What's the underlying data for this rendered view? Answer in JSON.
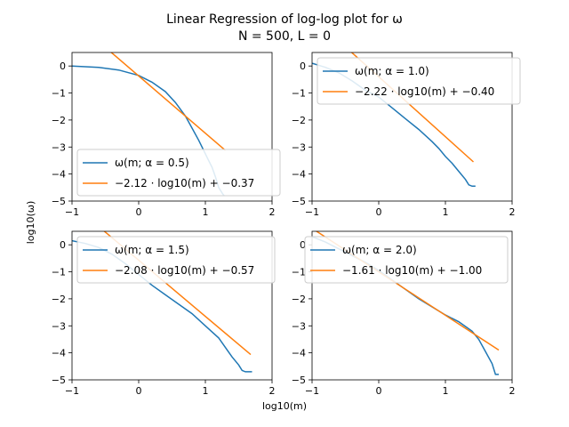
{
  "figure": {
    "title_line1": "Linear Regression of log-log plot for ω",
    "title_line2": "N = 500, L = 0",
    "xlabel": "log10(m)",
    "ylabel": "log10(ω)"
  },
  "colors": {
    "data": "#1f77b4",
    "fit": "#ff7f0e",
    "axis": "#000000"
  },
  "chart_data": [
    {
      "type": "line",
      "panel": "top-left",
      "xlim": [
        -1,
        2
      ],
      "ylim": [
        -5,
        0.5
      ],
      "xticks": [
        -1,
        0,
        1,
        2
      ],
      "yticks": [
        0,
        -1,
        -2,
        -3,
        -4,
        -5
      ],
      "legend": {
        "placement": "lower left",
        "entries": [
          "ω(m; α = 0.5)",
          "−2.12 · log10(m) + −0.37"
        ]
      },
      "series": [
        {
          "name": "ω(m; α = 0.5)",
          "role": "data",
          "x": [
            -1,
            -0.6,
            -0.3,
            0,
            0.2,
            0.4,
            0.55,
            0.7,
            0.8,
            0.9,
            1.0,
            1.05,
            1.1,
            1.15,
            1.2,
            1.25,
            1.28
          ],
          "y": [
            0.0,
            -0.05,
            -0.15,
            -0.35,
            -0.6,
            -0.95,
            -1.35,
            -1.85,
            -2.3,
            -2.75,
            -3.25,
            -3.5,
            -3.75,
            -4.1,
            -4.5,
            -4.7,
            -4.8
          ]
        },
        {
          "name": "−2.12 · log10(m) + −0.37",
          "role": "fit",
          "slope": -2.12,
          "intercept": -0.37,
          "x_range": [
            -0.6,
            1.3
          ]
        }
      ]
    },
    {
      "type": "line",
      "panel": "top-right",
      "xlim": [
        -1,
        2
      ],
      "ylim": [
        -5,
        0.5
      ],
      "xticks": [
        -1,
        0,
        1,
        2
      ],
      "yticks": [
        0,
        -1,
        -2,
        -3,
        -4,
        -5
      ],
      "legend": {
        "placement": "upper right",
        "entries": [
          "ω(m; α = 1.0)",
          "−2.22 · log10(m) + −0.40"
        ]
      },
      "series": [
        {
          "name": "ω(m; α = 1.0)",
          "role": "data",
          "x": [
            -1,
            -0.8,
            -0.6,
            -0.4,
            -0.2,
            0,
            0.2,
            0.4,
            0.6,
            0.8,
            0.9,
            1.0,
            1.1,
            1.2,
            1.3,
            1.35,
            1.4,
            1.45
          ],
          "y": [
            0.1,
            -0.05,
            -0.25,
            -0.55,
            -0.9,
            -1.15,
            -1.55,
            -1.95,
            -2.35,
            -2.8,
            -3.05,
            -3.35,
            -3.6,
            -3.9,
            -4.2,
            -4.4,
            -4.45,
            -4.45
          ]
        },
        {
          "name": "−2.22 · log10(m) + −0.40",
          "role": "fit",
          "slope": -2.22,
          "intercept": -0.4,
          "x_range": [
            -1,
            1.42
          ]
        }
      ]
    },
    {
      "type": "line",
      "panel": "bottom-left",
      "xlim": [
        -1,
        2
      ],
      "ylim": [
        -5,
        0.5
      ],
      "xticks": [
        -1,
        0,
        1,
        2
      ],
      "yticks": [
        0,
        -1,
        -2,
        -3,
        -4,
        -5
      ],
      "legend": {
        "placement": "upper right",
        "entries": [
          "ω(m; α = 1.5)",
          "−2.08 · log10(m) + −0.57"
        ]
      },
      "series": [
        {
          "name": "ω(m; α = 1.5)",
          "role": "data",
          "x": [
            -1,
            -0.8,
            -0.6,
            -0.4,
            -0.2,
            0,
            0.2,
            0.4,
            0.6,
            0.8,
            1.0,
            1.2,
            1.3,
            1.4,
            1.5,
            1.55,
            1.6,
            1.7
          ],
          "y": [
            0.15,
            0.05,
            -0.1,
            -0.35,
            -0.7,
            -1.1,
            -1.5,
            -1.85,
            -2.2,
            -2.55,
            -3.0,
            -3.45,
            -3.8,
            -4.15,
            -4.45,
            -4.65,
            -4.7,
            -4.7
          ]
        },
        {
          "name": "−2.08 · log10(m) + −0.57",
          "role": "fit",
          "slope": -2.08,
          "intercept": -0.57,
          "x_range": [
            -0.6,
            1.68
          ]
        }
      ]
    },
    {
      "type": "line",
      "panel": "bottom-right",
      "xlim": [
        -1,
        2
      ],
      "ylim": [
        -5,
        0.5
      ],
      "xticks": [
        -1,
        0,
        1,
        2
      ],
      "yticks": [
        0,
        -1,
        -2,
        -3,
        -4,
        -5
      ],
      "legend": {
        "placement": "upper right",
        "entries": [
          "ω(m; α = 2.0)",
          "−1.61 · log10(m) + −1.00"
        ]
      },
      "series": [
        {
          "name": "ω(m; α = 2.0)",
          "role": "data",
          "x": [
            -1,
            -0.8,
            -0.6,
            -0.4,
            -0.2,
            0,
            0.2,
            0.4,
            0.6,
            0.8,
            1.0,
            1.2,
            1.4,
            1.5,
            1.6,
            1.7,
            1.75,
            1.8
          ],
          "y": [
            0.3,
            0.1,
            -0.15,
            -0.4,
            -0.65,
            -0.95,
            -1.3,
            -1.65,
            -2.0,
            -2.3,
            -2.6,
            -2.85,
            -3.2,
            -3.5,
            -3.95,
            -4.4,
            -4.8,
            -4.8
          ]
        },
        {
          "name": "−1.61 · log10(m) + −1.00",
          "role": "fit",
          "slope": -1.61,
          "intercept": -1.0,
          "x_range": [
            -1,
            1.8
          ]
        }
      ]
    }
  ]
}
